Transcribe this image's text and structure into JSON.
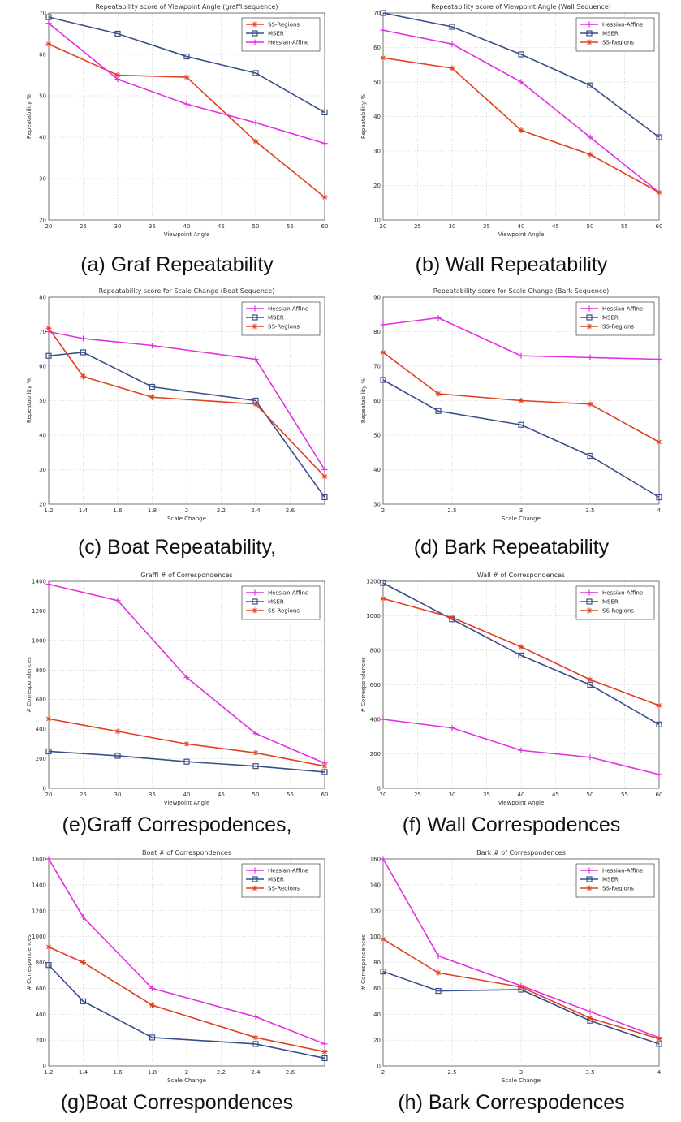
{
  "colors": {
    "magenta": "#E030E0",
    "blue": "#3A4F8A",
    "red": "#E04020"
  },
  "charts": [
    {
      "id": "a",
      "type": "line",
      "title": "Repeatability score of Viewpoint Angle (graffi sequence)",
      "xlabel": "Viewpoint Angle",
      "ylabel": "Repeatability %",
      "xlim": [
        20,
        60
      ],
      "ylim": [
        20,
        70
      ],
      "xticks": [
        20,
        25,
        30,
        35,
        40,
        45,
        50,
        55,
        60
      ],
      "yticks": [
        20,
        30,
        40,
        50,
        60,
        70
      ],
      "x": [
        20,
        30,
        40,
        50,
        60
      ],
      "series": [
        {
          "name": "SS-Regions",
          "color": "red",
          "marker": "star",
          "values": [
            62.5,
            55,
            54.5,
            39,
            25.5
          ]
        },
        {
          "name": "MSER",
          "color": "blue",
          "marker": "square",
          "values": [
            69,
            65,
            59.5,
            55.5,
            46
          ]
        },
        {
          "name": "Hessian-Affine",
          "color": "magenta",
          "marker": "plus",
          "values": [
            67.5,
            54,
            48,
            43.5,
            38.5
          ]
        }
      ],
      "caption": "(a) Graf Repeatability"
    },
    {
      "id": "b",
      "type": "line",
      "title": "Repeatability score of Viewpoint Angle (Wall Sequence)",
      "xlabel": "Viewpoint Angle",
      "ylabel": "Repeatability %",
      "xlim": [
        20,
        60
      ],
      "ylim": [
        10,
        70
      ],
      "xticks": [
        20,
        25,
        30,
        35,
        40,
        45,
        50,
        55,
        60
      ],
      "yticks": [
        10,
        20,
        30,
        40,
        50,
        60,
        70
      ],
      "x": [
        20,
        30,
        40,
        50,
        60
      ],
      "series": [
        {
          "name": "Hessian-Affine",
          "color": "magenta",
          "marker": "plus",
          "values": [
            65,
            61,
            50,
            34,
            18
          ]
        },
        {
          "name": "MSER",
          "color": "blue",
          "marker": "square",
          "values": [
            70,
            66,
            58,
            49,
            34
          ]
        },
        {
          "name": "SS-Regions",
          "color": "red",
          "marker": "star",
          "values": [
            57,
            54,
            36,
            29,
            18
          ]
        }
      ],
      "caption": "(b) Wall Repeatability"
    },
    {
      "id": "c",
      "type": "line",
      "title": "Repeatability score for Scale Change (Boat Sequence)",
      "xlabel": "Scale Change",
      "ylabel": "Repeatability %",
      "xlim": [
        1.2,
        2.8
      ],
      "ylim": [
        20,
        80
      ],
      "xticks": [
        1.2,
        1.4,
        1.6,
        1.8,
        2,
        2.2,
        2.4,
        2.6
      ],
      "xtick_labels": [
        "1.2",
        "1.4",
        "1.6",
        "1.8",
        "2",
        "2.2",
        "2.4",
        "2.6"
      ],
      "yticks": [
        20,
        30,
        40,
        50,
        60,
        70,
        80
      ],
      "x": [
        1.2,
        1.4,
        1.8,
        2.4,
        2.8
      ],
      "series": [
        {
          "name": "Hessian-Affine",
          "color": "magenta",
          "marker": "plus",
          "values": [
            70,
            68,
            66,
            62,
            30
          ]
        },
        {
          "name": "MSER",
          "color": "blue",
          "marker": "square",
          "values": [
            63,
            64,
            54,
            50,
            22
          ]
        },
        {
          "name": "SS-Regions",
          "color": "red",
          "marker": "star",
          "values": [
            71,
            57,
            51,
            49,
            28
          ]
        }
      ],
      "caption": "(c) Boat Repeatability,"
    },
    {
      "id": "d",
      "type": "line",
      "title": "Repeatability score for Scale Change (Bark Sequence)",
      "xlabel": "Scale Change",
      "ylabel": "Repeatability %",
      "xlim": [
        2,
        4
      ],
      "ylim": [
        30,
        90
      ],
      "xticks": [
        2,
        2.5,
        3,
        3.5,
        4
      ],
      "xtick_labels": [
        "2",
        "2.5",
        "3",
        "3.5",
        "4"
      ],
      "yticks": [
        30,
        40,
        50,
        60,
        70,
        80,
        90
      ],
      "x": [
        2,
        2.4,
        3,
        3.5,
        4
      ],
      "series": [
        {
          "name": "Hessian-Affine",
          "color": "magenta",
          "marker": "plus",
          "values": [
            82,
            84,
            73,
            72.5,
            72
          ]
        },
        {
          "name": "MSER",
          "color": "blue",
          "marker": "square",
          "values": [
            66,
            57,
            53,
            44,
            32
          ]
        },
        {
          "name": "SS-Regions",
          "color": "red",
          "marker": "star",
          "values": [
            74,
            62,
            60,
            59,
            48
          ]
        }
      ],
      "caption": "(d) Bark Repeatability"
    },
    {
      "id": "e",
      "type": "line",
      "title": "Graffi # of Correspondences",
      "xlabel": "Viewpoint Angle",
      "ylabel": "# Correspondences",
      "xlim": [
        20,
        60
      ],
      "ylim": [
        0,
        1400
      ],
      "xticks": [
        20,
        25,
        30,
        35,
        40,
        45,
        50,
        55,
        60
      ],
      "yticks": [
        0,
        200,
        400,
        600,
        800,
        1000,
        1200,
        1400
      ],
      "x": [
        20,
        30,
        40,
        50,
        60
      ],
      "series": [
        {
          "name": "Hessian-Affine",
          "color": "magenta",
          "marker": "plus",
          "values": [
            1380,
            1270,
            750,
            370,
            170
          ]
        },
        {
          "name": "MSER",
          "color": "blue",
          "marker": "square",
          "values": [
            250,
            220,
            180,
            150,
            110
          ]
        },
        {
          "name": "SS-Regions",
          "color": "red",
          "marker": "star",
          "values": [
            470,
            385,
            300,
            240,
            150
          ]
        }
      ],
      "caption": "(e)Graff Correspodences,"
    },
    {
      "id": "f",
      "type": "line",
      "title": "Wall # of Correspondences",
      "xlabel": "Viewpoint Angle",
      "ylabel": "# Correspondences",
      "xlim": [
        20,
        60
      ],
      "ylim": [
        0,
        1200
      ],
      "xticks": [
        20,
        25,
        30,
        35,
        40,
        45,
        50,
        55,
        60
      ],
      "yticks": [
        0,
        200,
        400,
        600,
        800,
        1000,
        1200
      ],
      "x": [
        20,
        30,
        40,
        50,
        60
      ],
      "series": [
        {
          "name": "Hessian-Affine",
          "color": "magenta",
          "marker": "plus",
          "values": [
            400,
            350,
            220,
            180,
            80
          ]
        },
        {
          "name": "MSER",
          "color": "blue",
          "marker": "square",
          "values": [
            1190,
            980,
            770,
            600,
            370
          ]
        },
        {
          "name": "SS-Regions",
          "color": "red",
          "marker": "star",
          "values": [
            1100,
            990,
            820,
            630,
            480
          ]
        }
      ],
      "caption": "(f) Wall Correspodences"
    },
    {
      "id": "g",
      "type": "line",
      "title": "Boat # of Correspondences",
      "xlabel": "Scale Change",
      "ylabel": "# Correspondences",
      "xlim": [
        1.2,
        2.8
      ],
      "ylim": [
        0,
        1600
      ],
      "xticks": [
        1.2,
        1.4,
        1.6,
        1.8,
        2,
        2.2,
        2.4,
        2.6
      ],
      "xtick_labels": [
        "1.2",
        "1.4",
        "1.6",
        "1.8",
        "2",
        "2.2",
        "2.4",
        "2.6"
      ],
      "yticks": [
        0,
        200,
        400,
        600,
        800,
        1000,
        1200,
        1400,
        1600
      ],
      "x": [
        1.2,
        1.4,
        1.8,
        2.4,
        2.8
      ],
      "series": [
        {
          "name": "Hessian-Affine",
          "color": "magenta",
          "marker": "plus",
          "values": [
            1600,
            1150,
            600,
            380,
            170
          ]
        },
        {
          "name": "MSER",
          "color": "blue",
          "marker": "square",
          "values": [
            780,
            500,
            220,
            170,
            60
          ]
        },
        {
          "name": "SS-Regions",
          "color": "red",
          "marker": "star",
          "values": [
            920,
            800,
            470,
            220,
            110
          ]
        }
      ],
      "caption": "(g)Boat Correspondences"
    },
    {
      "id": "h",
      "type": "line",
      "title": "Bark # of Correspondences",
      "xlabel": "Scale Change",
      "ylabel": "# Correspondences",
      "xlim": [
        2,
        4
      ],
      "ylim": [
        0,
        160
      ],
      "xticks": [
        2,
        2.5,
        3,
        3.5,
        4
      ],
      "xtick_labels": [
        "2",
        "2.5",
        "3",
        "3.5",
        "4"
      ],
      "yticks": [
        0,
        20,
        40,
        60,
        80,
        100,
        120,
        140,
        160
      ],
      "x": [
        2,
        2.4,
        3,
        3.5,
        4
      ],
      "series": [
        {
          "name": "Hessian-Affine",
          "color": "magenta",
          "marker": "plus",
          "values": [
            160,
            85,
            62,
            42,
            22
          ]
        },
        {
          "name": "MSER",
          "color": "blue",
          "marker": "square",
          "values": [
            73,
            58,
            59,
            35,
            17
          ]
        },
        {
          "name": "SS-Regions",
          "color": "red",
          "marker": "star",
          "values": [
            98,
            72,
            61,
            37,
            21
          ]
        }
      ],
      "caption": "(h) Bark Correspodences"
    }
  ]
}
